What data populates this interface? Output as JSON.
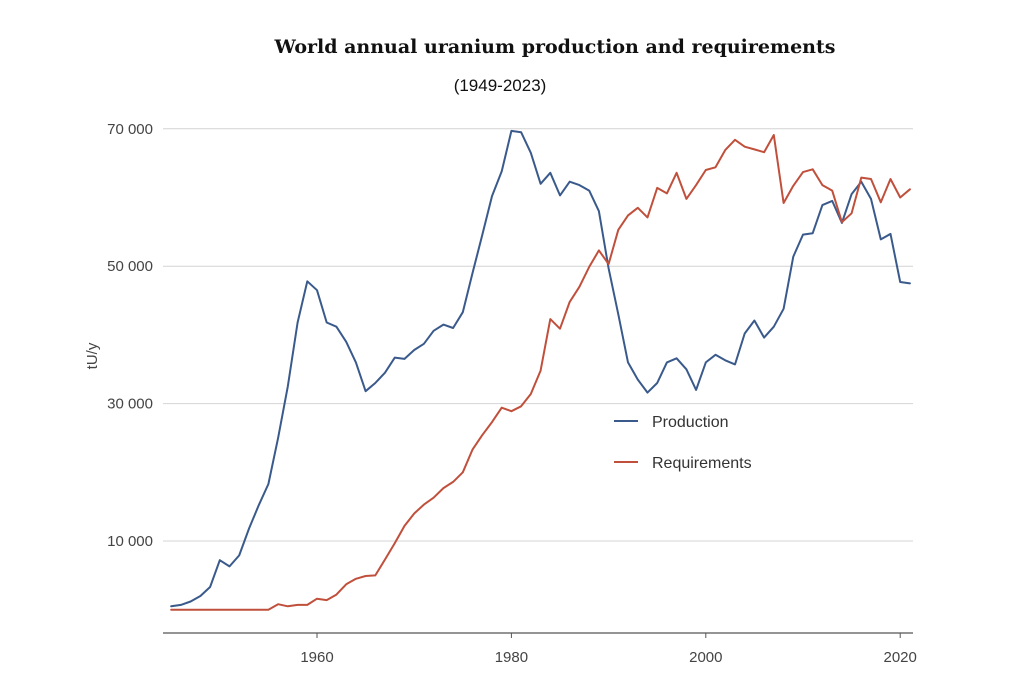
{
  "chart_data": {
    "type": "line",
    "title": "World annual uranium production and requirements",
    "subtitle": "(1949-2023)",
    "ylabel": "tU/y",
    "xlabel": "",
    "xlim": [
      1945,
      2022
    ],
    "ylim": [
      -3500,
      72000
    ],
    "x_ticks": [
      1960,
      1980,
      2000,
      2020
    ],
    "y_ticks": [
      10000,
      30000,
      50000,
      70000
    ],
    "y_tick_labels": [
      "10 000",
      "30 000",
      "50 000",
      "70 000"
    ],
    "grid": "horizontal",
    "legend_position": "center-right",
    "series": [
      {
        "name": "Production",
        "color": "#3a5a8c",
        "x": [
          1945,
          1946,
          1947,
          1948,
          1949,
          1950,
          1951,
          1952,
          1953,
          1954,
          1955,
          1956,
          1957,
          1958,
          1959,
          1960,
          1961,
          1962,
          1963,
          1964,
          1965,
          1966,
          1967,
          1968,
          1969,
          1970,
          1971,
          1972,
          1973,
          1974,
          1975,
          1976,
          1977,
          1978,
          1979,
          1980,
          1981,
          1982,
          1983,
          1984,
          1985,
          1986,
          1987,
          1988,
          1989,
          1990,
          1991,
          1992,
          1993,
          1994,
          1995,
          1996,
          1997,
          1998,
          1999,
          2000,
          2001,
          2002,
          2003,
          2004,
          2005,
          2006,
          2007,
          2008,
          2009,
          2010,
          2011,
          2012,
          2013,
          2014,
          2015,
          2016,
          2017,
          2018,
          2019,
          2020,
          2021
        ],
        "y": [
          500,
          700,
          1200,
          2000,
          3300,
          7200,
          6300,
          7900,
          11800,
          15200,
          18300,
          25000,
          32500,
          41800,
          47800,
          46500,
          41800,
          41200,
          39000,
          36000,
          31800,
          33000,
          34500,
          36700,
          36500,
          37800,
          38700,
          40600,
          41500,
          41000,
          43300,
          49000,
          54500,
          60200,
          63800,
          69700,
          69500,
          66500,
          62000,
          63600,
          60300,
          62300,
          61800,
          61000,
          58000,
          49700,
          43000,
          36000,
          33500,
          31600,
          33000,
          36000,
          36600,
          35000,
          32000,
          36000,
          37100,
          36300,
          35700,
          40200,
          42100,
          39600,
          41200,
          43800,
          51400,
          54600,
          54800,
          58900,
          59500,
          56300,
          60500,
          62300,
          59800,
          53900,
          54700,
          47700,
          47500
        ]
      },
      {
        "name": "Requirements",
        "color": "#c0503c",
        "x": [
          1945,
          1946,
          1947,
          1948,
          1949,
          1950,
          1951,
          1952,
          1953,
          1954,
          1955,
          1956,
          1957,
          1958,
          1959,
          1960,
          1961,
          1962,
          1963,
          1964,
          1965,
          1966,
          1967,
          1968,
          1969,
          1970,
          1971,
          1972,
          1973,
          1974,
          1975,
          1976,
          1977,
          1978,
          1979,
          1980,
          1981,
          1982,
          1983,
          1984,
          1985,
          1986,
          1987,
          1988,
          1989,
          1990,
          1991,
          1992,
          1993,
          1994,
          1995,
          1996,
          1997,
          1998,
          1999,
          2000,
          2001,
          2002,
          2003,
          2004,
          2005,
          2006,
          2007,
          2008,
          2009,
          2010,
          2011,
          2012,
          2013,
          2014,
          2015,
          2016,
          2017,
          2018,
          2019,
          2020,
          2021
        ],
        "y": [
          0,
          0,
          0,
          0,
          0,
          0,
          0,
          0,
          0,
          0,
          0,
          800,
          500,
          700,
          700,
          1600,
          1400,
          2200,
          3700,
          4500,
          4900,
          5000,
          7300,
          9700,
          12200,
          14000,
          15300,
          16300,
          17700,
          18600,
          20000,
          23300,
          25400,
          27300,
          29400,
          28900,
          29600,
          31400,
          34800,
          42300,
          40900,
          44800,
          47000,
          49900,
          52300,
          50300,
          55300,
          57400,
          58500,
          57100,
          61400,
          60600,
          63600,
          59800,
          61800,
          64000,
          64400,
          66900,
          68400,
          67400,
          67000,
          66600,
          69100,
          59200,
          61700,
          63700,
          64100,
          61800,
          61000,
          56400,
          57700,
          62900,
          62700,
          59300,
          62700,
          60000,
          61200
        ]
      }
    ]
  }
}
